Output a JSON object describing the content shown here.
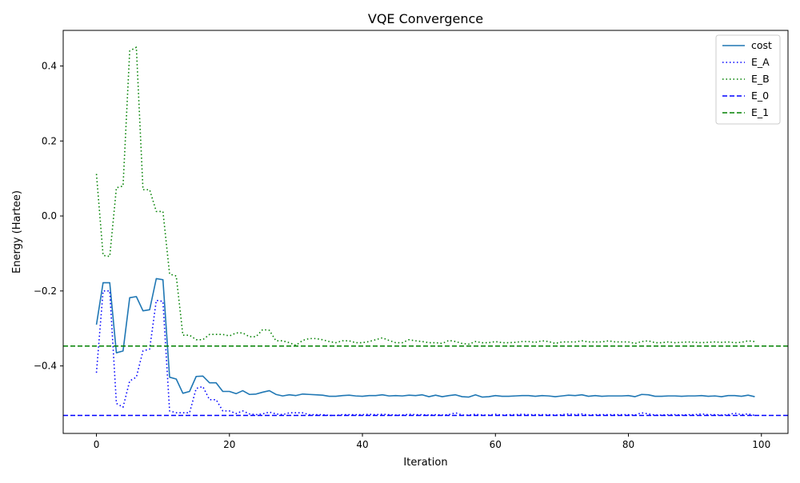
{
  "chart_data": {
    "type": "line",
    "title": "VQE Convergence",
    "xlabel": "Iteration",
    "ylabel": "Energy (Hartee)",
    "xlim": [
      -5,
      104
    ],
    "ylim": [
      -0.58,
      0.495
    ],
    "x_ticks": [
      0,
      20,
      40,
      60,
      80,
      100
    ],
    "x_tick_labels": [
      "0",
      "20",
      "40",
      "60",
      "80",
      "100"
    ],
    "y_ticks": [
      -0.4,
      -0.2,
      0.0,
      0.2,
      0.4
    ],
    "y_tick_labels": [
      "−0.4",
      "−0.2",
      "0.0",
      "0.2",
      "0.4"
    ],
    "grid": false,
    "legend_position": "top-right",
    "series": [
      {
        "name": "cost",
        "color": "#1f77b4",
        "style": "solid",
        "values": [
          -0.29,
          -0.178,
          -0.178,
          -0.365,
          -0.36,
          -0.218,
          -0.215,
          -0.253,
          -0.25,
          -0.167,
          -0.17,
          -0.43,
          -0.435,
          -0.473,
          -0.468,
          -0.428,
          -0.427,
          -0.445,
          -0.445,
          -0.468,
          -0.468,
          -0.474,
          -0.466,
          -0.476,
          -0.475,
          -0.47,
          -0.466,
          -0.476,
          -0.48,
          -0.477,
          -0.479,
          -0.475,
          -0.476,
          -0.477,
          -0.478,
          -0.481,
          -0.481,
          -0.479,
          -0.478,
          -0.48,
          -0.481,
          -0.479,
          -0.479,
          -0.477,
          -0.48,
          -0.479,
          -0.48,
          -0.478,
          -0.479,
          -0.477,
          -0.482,
          -0.478,
          -0.482,
          -0.479,
          -0.477,
          -0.482,
          -0.483,
          -0.477,
          -0.483,
          -0.482,
          -0.479,
          -0.481,
          -0.481,
          -0.48,
          -0.479,
          -0.479,
          -0.481,
          -0.479,
          -0.48,
          -0.482,
          -0.48,
          -0.478,
          -0.479,
          -0.477,
          -0.481,
          -0.479,
          -0.481,
          -0.48,
          -0.48,
          -0.48,
          -0.479,
          -0.482,
          -0.476,
          -0.477,
          -0.481,
          -0.481,
          -0.48,
          -0.48,
          -0.481,
          -0.48,
          -0.48,
          -0.479,
          -0.481,
          -0.48,
          -0.482,
          -0.479,
          -0.479,
          -0.481,
          -0.478,
          -0.482
        ]
      },
      {
        "name": "E_A",
        "color": "#0000ff",
        "style": "dotted",
        "values": [
          -0.418,
          -0.2,
          -0.2,
          -0.5,
          -0.51,
          -0.44,
          -0.43,
          -0.36,
          -0.355,
          -0.225,
          -0.228,
          -0.52,
          -0.525,
          -0.525,
          -0.525,
          -0.46,
          -0.455,
          -0.49,
          -0.49,
          -0.52,
          -0.52,
          -0.527,
          -0.52,
          -0.528,
          -0.53,
          -0.528,
          -0.523,
          -0.528,
          -0.53,
          -0.525,
          -0.525,
          -0.525,
          -0.53,
          -0.53,
          -0.53,
          -0.532,
          -0.532,
          -0.53,
          -0.53,
          -0.53,
          -0.53,
          -0.529,
          -0.53,
          -0.529,
          -0.53,
          -0.531,
          -0.531,
          -0.529,
          -0.53,
          -0.53,
          -0.531,
          -0.53,
          -0.531,
          -0.53,
          -0.525,
          -0.531,
          -0.531,
          -0.529,
          -0.531,
          -0.531,
          -0.529,
          -0.531,
          -0.53,
          -0.53,
          -0.529,
          -0.53,
          -0.53,
          -0.53,
          -0.53,
          -0.531,
          -0.53,
          -0.528,
          -0.53,
          -0.528,
          -0.531,
          -0.53,
          -0.53,
          -0.53,
          -0.53,
          -0.53,
          -0.53,
          -0.531,
          -0.525,
          -0.528,
          -0.531,
          -0.531,
          -0.53,
          -0.53,
          -0.531,
          -0.53,
          -0.53,
          -0.528,
          -0.53,
          -0.53,
          -0.531,
          -0.53,
          -0.526,
          -0.53,
          -0.528,
          -0.532
        ]
      },
      {
        "name": "E_B",
        "color": "#008000",
        "style": "dotted",
        "values": [
          0.112,
          -0.105,
          -0.108,
          0.075,
          0.08,
          0.44,
          0.45,
          0.07,
          0.07,
          0.012,
          0.012,
          -0.155,
          -0.16,
          -0.318,
          -0.318,
          -0.33,
          -0.33,
          -0.316,
          -0.316,
          -0.316,
          -0.32,
          -0.312,
          -0.312,
          -0.322,
          -0.322,
          -0.303,
          -0.305,
          -0.333,
          -0.333,
          -0.338,
          -0.345,
          -0.332,
          -0.327,
          -0.327,
          -0.33,
          -0.335,
          -0.338,
          -0.333,
          -0.333,
          -0.338,
          -0.338,
          -0.335,
          -0.33,
          -0.325,
          -0.332,
          -0.338,
          -0.338,
          -0.33,
          -0.333,
          -0.335,
          -0.338,
          -0.338,
          -0.34,
          -0.332,
          -0.335,
          -0.34,
          -0.342,
          -0.335,
          -0.338,
          -0.338,
          -0.335,
          -0.338,
          -0.338,
          -0.337,
          -0.335,
          -0.335,
          -0.337,
          -0.333,
          -0.335,
          -0.34,
          -0.336,
          -0.336,
          -0.336,
          -0.333,
          -0.336,
          -0.336,
          -0.336,
          -0.333,
          -0.336,
          -0.336,
          -0.336,
          -0.34,
          -0.335,
          -0.333,
          -0.338,
          -0.338,
          -0.336,
          -0.338,
          -0.337,
          -0.336,
          -0.337,
          -0.338,
          -0.337,
          -0.336,
          -0.337,
          -0.336,
          -0.338,
          -0.337,
          -0.333,
          -0.335
        ]
      },
      {
        "name": "E_0",
        "color": "#0000ff",
        "style": "dashed",
        "constant": -0.532
      },
      {
        "name": "E_1",
        "color": "#008000",
        "style": "dashed",
        "constant": -0.347
      }
    ]
  }
}
